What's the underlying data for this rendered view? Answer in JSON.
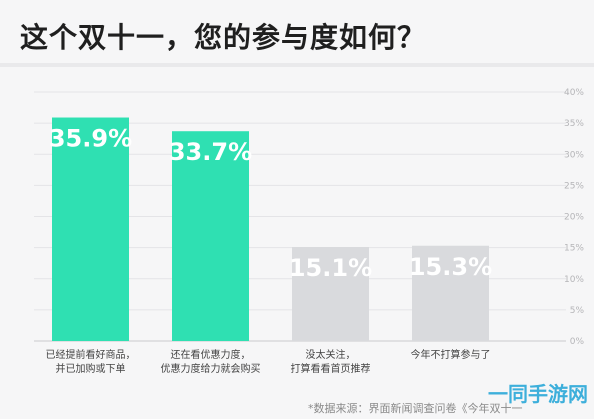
{
  "chart_data": {
    "type": "bar",
    "title": "这个双十一，您的参与度如何？",
    "categories": [
      [
        "已经提前看好商品，",
        "并已加购或下单"
      ],
      [
        "还在看优惠力度，",
        "优惠力度给力就会购买"
      ],
      [
        "没太关注，",
        "打算看看首页推荐"
      ],
      [
        "今年不打算参与了"
      ]
    ],
    "values": [
      35.9,
      33.7,
      15.1,
      15.3
    ],
    "value_labels": [
      "35.9%",
      "33.7%",
      "15.1%",
      "15.3%"
    ],
    "bar_colors": [
      "#2fe0b2",
      "#2fe0b2",
      "#d9dadd",
      "#d9dadd"
    ],
    "ylim": [
      0,
      40
    ],
    "yticks": [
      "0%",
      "5%",
      "10%",
      "15%",
      "20%",
      "25%",
      "30%",
      "35%",
      "40%"
    ],
    "ytick_values": [
      0,
      5,
      10,
      15,
      20,
      25,
      30,
      35,
      40
    ],
    "grid": true,
    "xlabel": "",
    "ylabel": ""
  },
  "source": "*数据来源：界面新闻调查问卷《今年双十一",
  "watermark": "一同手游网"
}
